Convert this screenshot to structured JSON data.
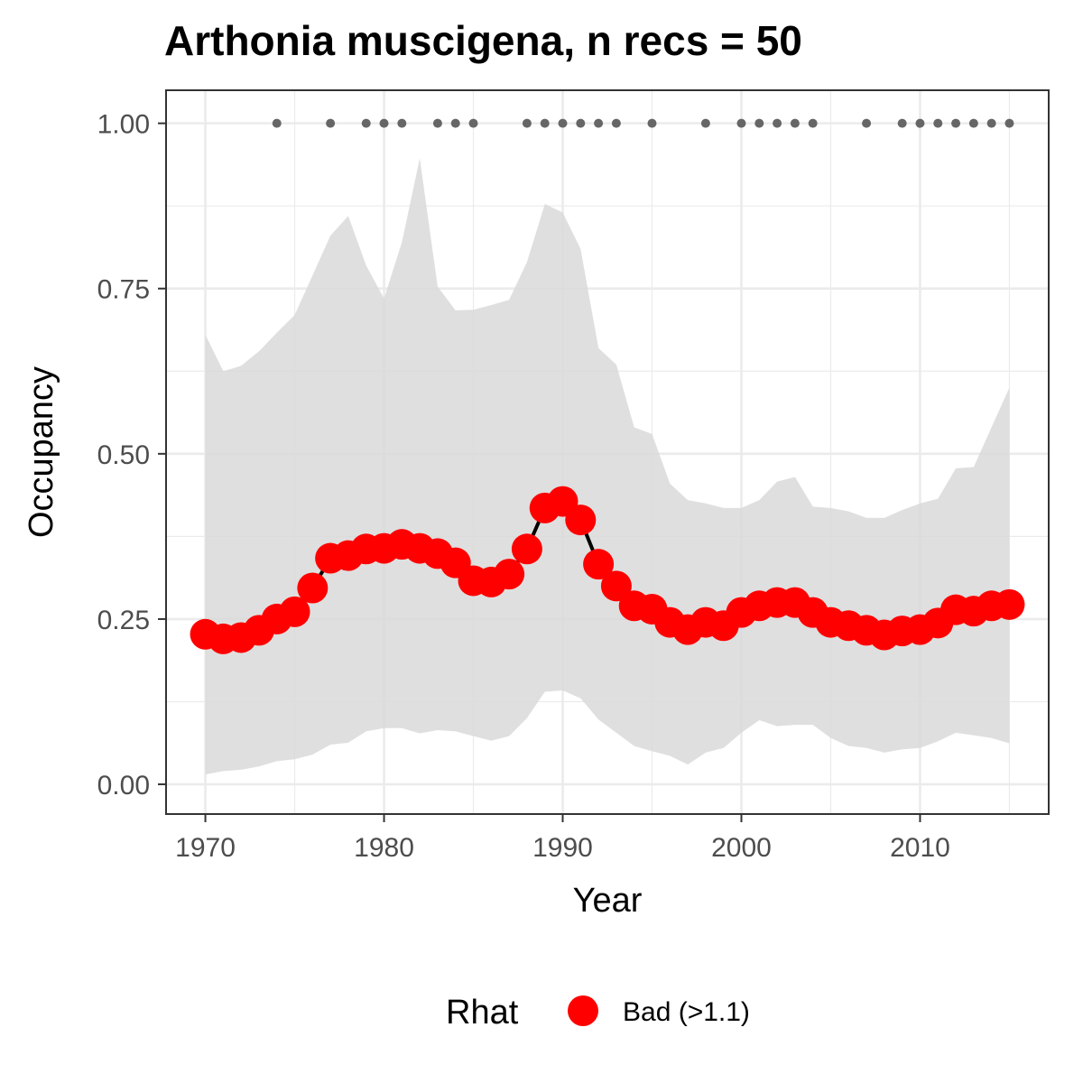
{
  "chart_data": {
    "type": "line",
    "title": "Arthonia muscigena, n recs = 50",
    "xlabel": "Year",
    "ylabel": "Occupancy",
    "xlim": [
      1967.8,
      2017.2
    ],
    "ylim": [
      -0.045,
      1.05
    ],
    "x_ticks": [
      1970,
      1980,
      1990,
      2000,
      2010
    ],
    "x_tick_labels": [
      "1970",
      "1980",
      "1990",
      "2000",
      "2010"
    ],
    "y_ticks": [
      0,
      0.25,
      0.5,
      0.75,
      1.0
    ],
    "y_tick_labels": [
      "0.00",
      "0.25",
      "0.50",
      "0.75",
      "1.00"
    ],
    "grid": true,
    "legend_position": "bottom",
    "legend_title": "Rhat",
    "colors": {
      "point": "#ff0000",
      "line": "#000000",
      "ribbon": "#d9d9d9",
      "record_dot": "#666666",
      "grid_major": "#ebebeb",
      "panel_border": "#333333"
    },
    "series": [
      {
        "name": "Bad (>1.1)",
        "x": [
          1970,
          1971,
          1972,
          1973,
          1974,
          1975,
          1976,
          1977,
          1978,
          1979,
          1980,
          1981,
          1982,
          1983,
          1984,
          1985,
          1986,
          1987,
          1988,
          1989,
          1990,
          1991,
          1992,
          1993,
          1994,
          1995,
          1996,
          1997,
          1998,
          1999,
          2000,
          2001,
          2002,
          2003,
          2004,
          2005,
          2006,
          2007,
          2008,
          2009,
          2010,
          2011,
          2012,
          2013,
          2014,
          2015
        ],
        "y": [
          0.227,
          0.22,
          0.222,
          0.233,
          0.25,
          0.261,
          0.297,
          0.342,
          0.346,
          0.356,
          0.357,
          0.363,
          0.357,
          0.349,
          0.335,
          0.308,
          0.306,
          0.318,
          0.356,
          0.418,
          0.428,
          0.4,
          0.333,
          0.3,
          0.27,
          0.265,
          0.245,
          0.234,
          0.245,
          0.24,
          0.26,
          0.27,
          0.275,
          0.275,
          0.26,
          0.245,
          0.24,
          0.233,
          0.226,
          0.232,
          0.234,
          0.244,
          0.264,
          0.262,
          0.27,
          0.272
        ]
      }
    ],
    "credible_interval": {
      "x": [
        1970,
        1971,
        1972,
        1973,
        1974,
        1975,
        1976,
        1977,
        1978,
        1979,
        1980,
        1981,
        1982,
        1983,
        1984,
        1985,
        1986,
        1987,
        1988,
        1989,
        1990,
        1991,
        1992,
        1993,
        1994,
        1995,
        1996,
        1997,
        1998,
        1999,
        2000,
        2001,
        2002,
        2003,
        2004,
        2005,
        2006,
        2007,
        2008,
        2009,
        2010,
        2011,
        2012,
        2013,
        2014,
        2015
      ],
      "lower": [
        0.015,
        0.02,
        0.022,
        0.027,
        0.035,
        0.038,
        0.045,
        0.06,
        0.063,
        0.08,
        0.085,
        0.085,
        0.077,
        0.082,
        0.08,
        0.073,
        0.066,
        0.073,
        0.1,
        0.14,
        0.142,
        0.13,
        0.098,
        0.078,
        0.058,
        0.05,
        0.043,
        0.03,
        0.048,
        0.055,
        0.078,
        0.097,
        0.088,
        0.09,
        0.09,
        0.07,
        0.058,
        0.055,
        0.048,
        0.053,
        0.055,
        0.065,
        0.078,
        0.074,
        0.07,
        0.062
      ],
      "upper": [
        0.68,
        0.625,
        0.633,
        0.655,
        0.683,
        0.71,
        0.77,
        0.83,
        0.86,
        0.785,
        0.735,
        0.82,
        0.947,
        0.753,
        0.717,
        0.718,
        0.725,
        0.733,
        0.79,
        0.878,
        0.865,
        0.81,
        0.66,
        0.635,
        0.54,
        0.53,
        0.455,
        0.43,
        0.425,
        0.418,
        0.418,
        0.43,
        0.458,
        0.465,
        0.42,
        0.418,
        0.413,
        0.403,
        0.403,
        0.415,
        0.425,
        0.432,
        0.478,
        0.48,
        0.54,
        0.6
      ]
    },
    "record_years": [
      1974,
      1977,
      1979,
      1980,
      1981,
      1983,
      1984,
      1985,
      1988,
      1989,
      1990,
      1991,
      1992,
      1993,
      1995,
      1998,
      2000,
      2001,
      2002,
      2003,
      2004,
      2007,
      2009,
      2010,
      2011,
      2012,
      2013,
      2014,
      2015
    ],
    "record_y": 1.0
  }
}
